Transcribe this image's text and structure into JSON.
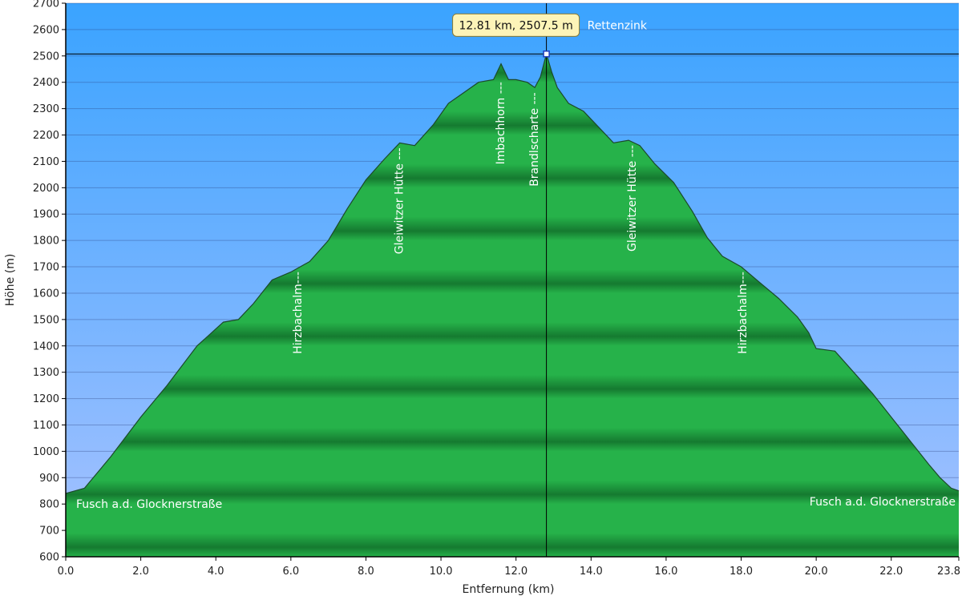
{
  "chart_data": {
    "type": "area",
    "xlabel": "Entfernung   (km)",
    "ylabel": "Höhe (m)",
    "xlim": [
      0,
      23.8
    ],
    "ylim": [
      600,
      2700
    ],
    "x_ticks": [
      0,
      2,
      4,
      6,
      8,
      10,
      12,
      14,
      16,
      18,
      20,
      22,
      23.8
    ],
    "x_tick_labels": [
      "0.0",
      "2.0",
      "4.0",
      "6.0",
      "8.0",
      "10.0",
      "12.0",
      "14.0",
      "16.0",
      "18.0",
      "20.0",
      "22.0",
      "23.8"
    ],
    "y_ticks": [
      600,
      700,
      800,
      900,
      1000,
      1100,
      1200,
      1300,
      1400,
      1500,
      1600,
      1700,
      1800,
      1900,
      2000,
      2100,
      2200,
      2300,
      2400,
      2500,
      2600,
      2700
    ],
    "grid": true,
    "colors": {
      "sky_top": "#3aa3ff",
      "sky_bottom": "#a7c2ff",
      "fill_light": "#26b24a",
      "fill_dark": "#157a30",
      "outline": "#1c4a2a",
      "tooltip_bg": "#fdf4b8"
    },
    "series": [
      {
        "x": [
          0,
          0.5,
          1.2,
          2.0,
          2.7,
          3.5,
          4.2,
          4.6,
          5.0,
          5.5,
          6.0,
          6.5,
          7.0,
          7.5,
          8.0,
          8.5,
          8.9,
          9.3,
          9.8,
          10.2,
          10.6,
          11.0,
          11.4,
          11.6,
          11.8,
          12.0,
          12.3,
          12.5,
          12.65,
          12.81,
          12.95,
          13.1,
          13.4,
          13.8,
          14.2,
          14.6,
          15.0,
          15.3,
          15.7,
          16.2,
          16.7,
          17.1,
          17.5,
          18.0,
          18.5,
          19.0,
          19.5,
          19.8,
          20.0,
          20.5,
          21.0,
          21.5,
          22.0,
          22.5,
          23.0,
          23.3,
          23.6,
          23.8
        ],
        "y": [
          840,
          860,
          980,
          1130,
          1250,
          1400,
          1490,
          1500,
          1560,
          1650,
          1680,
          1720,
          1800,
          1920,
          2030,
          2110,
          2170,
          2160,
          2240,
          2320,
          2360,
          2400,
          2410,
          2470,
          2410,
          2410,
          2400,
          2380,
          2420,
          2507.5,
          2440,
          2380,
          2320,
          2290,
          2230,
          2170,
          2180,
          2160,
          2090,
          2020,
          1910,
          1810,
          1740,
          1700,
          1640,
          1580,
          1510,
          1450,
          1390,
          1380,
          1300,
          1220,
          1130,
          1040,
          950,
          900,
          860,
          850
        ]
      }
    ],
    "annotations": [
      {
        "x": 0.15,
        "y": 800,
        "text": "Fusch a.d. Glocknerstraße",
        "orientation": "horizontal",
        "anchor": "start"
      },
      {
        "x": 23.8,
        "y": 810,
        "text": "Fusch a.d. Glocknerstraße",
        "orientation": "horizontal",
        "anchor": "end"
      },
      {
        "x": 6.2,
        "y": 1700,
        "text": "Hirzbachalm---",
        "orientation": "vertical"
      },
      {
        "x": 8.9,
        "y": 2170,
        "text": "Gleiwitzer Hütte ---",
        "orientation": "vertical"
      },
      {
        "x": 11.6,
        "y": 2420,
        "text": "Imbachhorn ---",
        "orientation": "vertical"
      },
      {
        "x": 12.5,
        "y": 2380,
        "text": "Brandlscharte ---",
        "orientation": "vertical"
      },
      {
        "x": 15.1,
        "y": 2180,
        "text": "Gleiwitzer Hütte ---",
        "orientation": "vertical"
      },
      {
        "x": 18.05,
        "y": 1700,
        "text": "Hirzbachalm---",
        "orientation": "vertical"
      }
    ],
    "crosshair": {
      "x": 12.81,
      "y": 2507.5,
      "tooltip": "12.81 km, 2507.5 m",
      "place_name": "Rettenzink"
    }
  }
}
